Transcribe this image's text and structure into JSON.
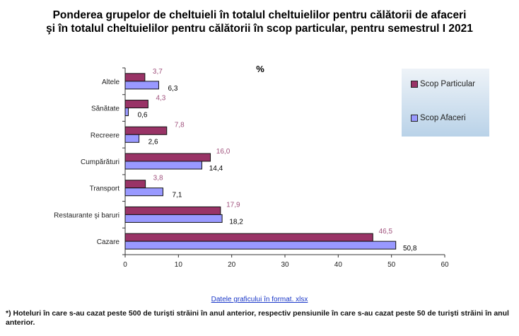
{
  "title_line1": "Ponderea grupelor de cheltuieli în totalul cheltuielilor pentru călătorii de afaceri",
  "title_line2": "şi în totalul cheltuielilor pentru călătorii în scop particular, pentru semestrul I 2021",
  "link": "Datele graficului în format. xlsx",
  "footnote": "*) Hoteluri în care s-au cazat peste 500 de turişti străini în anul anterior, respectiv pensiunile în care s-au cazat peste 50 de turişti străini în anul anterior.",
  "chart_data": {
    "type": "bar",
    "orientation": "horizontal",
    "unit_label": "%",
    "categories": [
      "Altele",
      "Sănătate",
      "Recreere",
      "Cumpărături",
      "Transport",
      "Restaurante şi baruri",
      "Cazare"
    ],
    "series": [
      {
        "name": "Scop Particular",
        "color": "#993366",
        "label_color": "#a0527d",
        "values": [
          3.7,
          4.3,
          7.8,
          16.0,
          3.8,
          17.9,
          46.5
        ],
        "labels": [
          "3,7",
          "4,3",
          "7,8",
          "16,0",
          "3,8",
          "17,9",
          "46,5"
        ]
      },
      {
        "name": "Scop Afaceri",
        "color": "#9999ff",
        "label_color": "#000000",
        "values": [
          6.3,
          0.6,
          2.6,
          14.4,
          7.1,
          18.2,
          50.8
        ],
        "labels": [
          "6,3",
          "0,6",
          "2,6",
          "14,4",
          "7,1",
          "18,2",
          "50,8"
        ]
      }
    ],
    "xlim": [
      0,
      60
    ],
    "xticks": [
      "0",
      "10",
      "20",
      "30",
      "40",
      "50",
      "60"
    ],
    "legend": "top-right"
  }
}
